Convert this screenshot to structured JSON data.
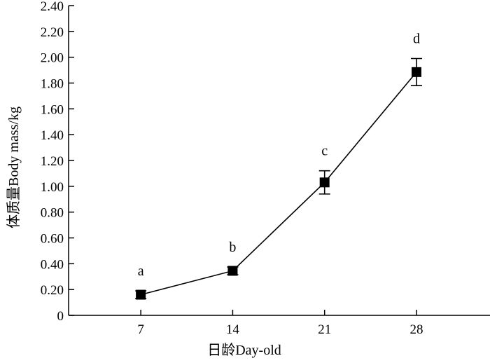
{
  "chart_data": {
    "type": "line",
    "xlabel": "日龄Day-old",
    "ylabel": "体质量Body mass/kg",
    "x": [
      7,
      14,
      21,
      28
    ],
    "xticks": [
      "7",
      "14",
      "21",
      "28"
    ],
    "xlim": [
      1.5,
      33.6
    ],
    "yticks": [
      "0",
      "0.20",
      "0.40",
      "0.60",
      "0.80",
      "1.00",
      "1.20",
      "1.40",
      "1.60",
      "1.80",
      "2.00",
      "2.20",
      "2.40"
    ],
    "ylim": [
      0,
      2.4
    ],
    "series": [
      {
        "values": [
          0.16,
          0.345,
          1.03,
          1.885
        ],
        "errors": [
          0.03,
          0.03,
          0.09,
          0.105
        ],
        "labels": [
          "a",
          "b",
          "c",
          "d"
        ],
        "color": "#000000",
        "marker": "square"
      }
    ],
    "grid": false,
    "legend": "none"
  }
}
